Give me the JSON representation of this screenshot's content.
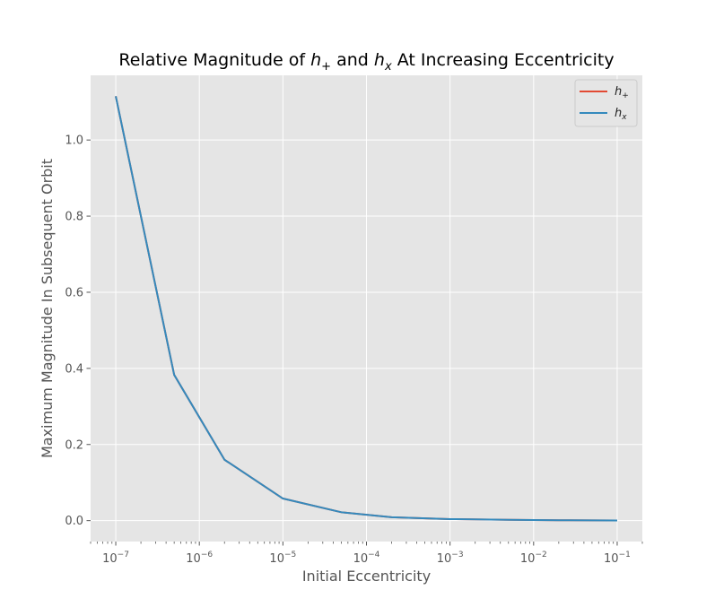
{
  "chart_data": {
    "type": "line",
    "title": {
      "prefix": "Relative Magnitude of ",
      "sym1_base": "h",
      "sym1_sub": "+",
      "middle": " and ",
      "sym2_base": "h",
      "sym2_sub": "x",
      "suffix": " At Increasing Eccentricity"
    },
    "xlabel": "Initial Eccentricity",
    "ylabel": "Maximum Magnitude In Subsequent Orbit",
    "xscale": "log",
    "xlim": [
      5e-08,
      0.2
    ],
    "ylim": [
      -0.055,
      1.17
    ],
    "x_ticks": [
      {
        "base": "10",
        "exp": "−7",
        "value": 1e-07
      },
      {
        "base": "10",
        "exp": "−6",
        "value": 1e-06
      },
      {
        "base": "10",
        "exp": "−5",
        "value": 1e-05
      },
      {
        "base": "10",
        "exp": "−4",
        "value": 0.0001
      },
      {
        "base": "10",
        "exp": "−3",
        "value": 0.001
      },
      {
        "base": "10",
        "exp": "−2",
        "value": 0.01
      },
      {
        "base": "10",
        "exp": "−1",
        "value": 0.1
      }
    ],
    "y_ticks": [
      {
        "label": "0.0",
        "value": 0.0
      },
      {
        "label": "0.2",
        "value": 0.2
      },
      {
        "label": "0.4",
        "value": 0.4
      },
      {
        "label": "0.6",
        "value": 0.6
      },
      {
        "label": "0.8",
        "value": 0.8
      },
      {
        "label": "1.0",
        "value": 1.0
      }
    ],
    "grid": true,
    "legend_position": "top-right",
    "style": {
      "background": "#e5e5e5",
      "grid_color": "#ffffff",
      "text_color": "#555555"
    },
    "series": [
      {
        "legend_base": "h",
        "legend_sub": "+",
        "color": "#e24a33",
        "x": [
          1e-07,
          5e-07,
          2e-06,
          1e-05,
          5e-05,
          0.0002,
          0.001,
          0.005,
          0.02,
          0.1
        ],
        "y": [
          1.115,
          0.383,
          0.16,
          0.058,
          0.022,
          0.009,
          0.004,
          0.002,
          0.001,
          0.0005
        ]
      },
      {
        "legend_base": "h",
        "legend_sub": "x",
        "color": "#348abd",
        "x": [
          1e-07,
          5e-07,
          2e-06,
          1e-05,
          5e-05,
          0.0002,
          0.001,
          0.005,
          0.02,
          0.1
        ],
        "y": [
          1.115,
          0.383,
          0.16,
          0.058,
          0.022,
          0.009,
          0.004,
          0.002,
          0.001,
          0.0005
        ]
      }
    ]
  }
}
